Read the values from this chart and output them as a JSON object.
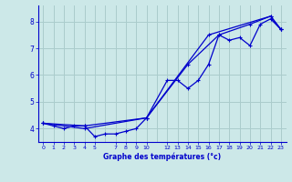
{
  "xlabel": "Graphe des températures (°c)",
  "bg_color": "#cce8e8",
  "grid_color": "#aacccc",
  "line_color": "#0000cc",
  "xlim": [
    -0.5,
    23.5
  ],
  "ylim": [
    3.5,
    8.6
  ],
  "xtick_vals": [
    0,
    1,
    2,
    3,
    4,
    5,
    7,
    8,
    9,
    10,
    12,
    13,
    14,
    15,
    16,
    17,
    18,
    19,
    20,
    21,
    22,
    23
  ],
  "xtick_labels": [
    "0",
    "1",
    "2",
    "3",
    "4",
    "5",
    "7",
    "8",
    "9",
    "10",
    "12",
    "13",
    "14",
    "15",
    "16",
    "17",
    "18",
    "19",
    "20",
    "21",
    "22",
    "23"
  ],
  "ytick_vals": [
    4,
    5,
    6,
    7,
    8
  ],
  "ytick_labels": [
    "4",
    "5",
    "6",
    "7",
    "8"
  ],
  "series1_x": [
    0,
    1,
    2,
    3,
    4,
    5,
    6,
    7,
    8,
    9,
    10,
    12,
    13,
    14,
    15,
    16,
    17,
    18,
    19,
    20,
    21,
    22,
    23
  ],
  "series1_y": [
    4.2,
    4.1,
    4.0,
    4.1,
    4.1,
    3.7,
    3.8,
    3.8,
    3.9,
    4.0,
    4.4,
    5.8,
    5.8,
    5.5,
    5.8,
    6.4,
    7.5,
    7.3,
    7.4,
    7.1,
    7.9,
    8.1,
    7.7
  ],
  "series2_x": [
    0,
    4,
    10,
    14,
    17,
    20,
    22,
    23
  ],
  "series2_y": [
    4.2,
    4.1,
    4.4,
    6.4,
    7.5,
    7.9,
    8.2,
    7.7
  ],
  "series3_x": [
    0,
    4,
    10,
    16,
    22,
    23
  ],
  "series3_y": [
    4.2,
    4.0,
    4.4,
    7.5,
    8.2,
    7.7
  ]
}
